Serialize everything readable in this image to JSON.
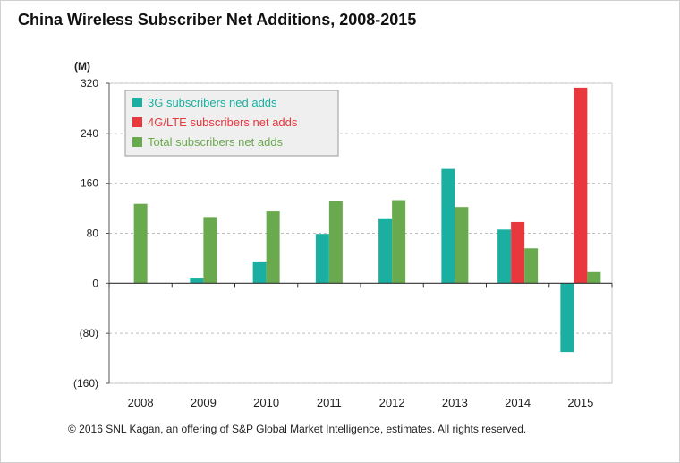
{
  "page": {
    "title": "China Wireless Subscriber Net Additions, 2008-2015",
    "footer": "© 2016 SNL Kagan, an offering of S&P Global Market Intelligence, estimates. All rights reserved."
  },
  "chart_data": {
    "type": "bar",
    "title": "China Wireless Subscriber Net Additions, 2008-2015",
    "ylabel": "(M)",
    "xlabel": "",
    "categories": [
      "2008",
      "2009",
      "2010",
      "2011",
      "2012",
      "2013",
      "2014",
      "2015"
    ],
    "ylim": [
      -160,
      320
    ],
    "yticks": [
      320,
      240,
      160,
      80,
      0,
      -80,
      -160
    ],
    "ytick_labels": [
      "320",
      "240",
      "160",
      "80",
      "0",
      "(80)",
      "(160)"
    ],
    "grid": true,
    "legend_position": "top-left",
    "series": [
      {
        "name": "3G subscribers ned adds",
        "color": "#1aafa0",
        "values": [
          null,
          9,
          35,
          79,
          104,
          183,
          86,
          -110
        ]
      },
      {
        "name": "4G/LTE subscribers net adds",
        "color": "#e8383d",
        "values": [
          null,
          null,
          null,
          null,
          null,
          null,
          98,
          313
        ]
      },
      {
        "name": "Total subscribers net adds",
        "color": "#6aaa4e",
        "values": [
          127,
          106,
          115,
          132,
          133,
          122,
          56,
          18
        ]
      }
    ]
  }
}
